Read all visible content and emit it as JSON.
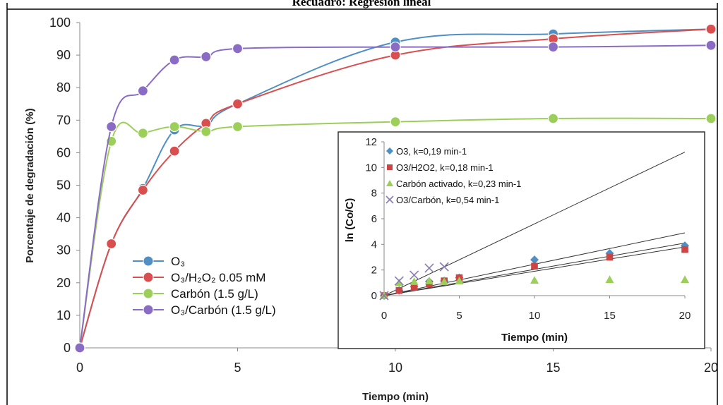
{
  "top_title": "Recuadro: Regresión lineal",
  "chart_data": [
    {
      "type": "line",
      "xlabel": "Tiempo (min)",
      "ylabel": "Porcentaje de degradación (%)",
      "xlim": [
        0,
        20
      ],
      "ylim": [
        0,
        100
      ],
      "xticks": [
        0,
        5,
        10,
        15,
        20
      ],
      "yticks": [
        0,
        10,
        20,
        30,
        40,
        50,
        60,
        70,
        80,
        90,
        100
      ],
      "grid": false,
      "legend_position": "bottom-left",
      "series": [
        {
          "name": "O₃",
          "color": "#4f8fc4",
          "x": [
            0,
            1,
            2,
            3,
            4,
            5,
            10,
            15,
            20
          ],
          "y": [
            0,
            32,
            49,
            67,
            68.5,
            75,
            94,
            96.5,
            98
          ]
        },
        {
          "name": "O₃/H₂O₂ 0.05 mM",
          "color": "#d94f4f",
          "x": [
            0,
            1,
            2,
            3,
            4,
            5,
            10,
            15,
            20
          ],
          "y": [
            0,
            32,
            48.5,
            60.5,
            69,
            75,
            90,
            95,
            98
          ]
        },
        {
          "name": "Carbón (1.5 g/L)",
          "color": "#9bcf5a",
          "x": [
            0,
            1,
            2,
            3,
            4,
            5,
            10,
            15,
            20
          ],
          "y": [
            0,
            63.5,
            66,
            68,
            66.5,
            68,
            69.5,
            70.5,
            70.5
          ]
        },
        {
          "name": "O₃/Carbón (1.5 g/L)",
          "color": "#8a6cc4",
          "x": [
            0,
            1,
            2,
            3,
            4,
            5,
            10,
            15,
            20
          ],
          "y": [
            0,
            68,
            79,
            88.5,
            89.5,
            92,
            92.5,
            92.5,
            93
          ]
        }
      ]
    },
    {
      "type": "scatter",
      "xlabel": "Tiempo (min)",
      "ylabel": "ln (Co/C)",
      "xlim": [
        0,
        20
      ],
      "ylim": [
        0,
        12
      ],
      "xticks": [
        0,
        5,
        10,
        15,
        20
      ],
      "yticks": [
        0,
        2,
        4,
        6,
        8,
        10,
        12
      ],
      "grid": false,
      "legend_position": "top-left",
      "series": [
        {
          "name": "O3, k=0,19 min-1",
          "marker": "diamond",
          "color": "#4f8fc4",
          "x": [
            0,
            1,
            2,
            3,
            4,
            5,
            10,
            15,
            20
          ],
          "y": [
            0,
            0.4,
            0.7,
            1.1,
            1.15,
            1.4,
            2.8,
            3.3,
            3.9
          ]
        },
        {
          "name": "O3/H2O2, k=0,18 min-1",
          "marker": "square",
          "color": "#cc4444",
          "x": [
            0,
            1,
            2,
            3,
            4,
            5,
            10,
            15,
            20
          ],
          "y": [
            0,
            0.4,
            0.65,
            0.9,
            1.15,
            1.4,
            2.3,
            3.0,
            3.6
          ]
        },
        {
          "name": "Carbón activado, k=0,23 min-1",
          "marker": "triangle",
          "color": "#9bcf5a",
          "x": [
            0,
            1,
            2,
            3,
            4,
            5,
            10,
            15,
            20
          ],
          "y": [
            0,
            1.0,
            1.1,
            1.15,
            1.1,
            1.15,
            1.2,
            1.25,
            1.25
          ]
        },
        {
          "name": "O3/Carbón, k=0,54 min-1",
          "marker": "x",
          "color": "#8a7cb0",
          "x": [
            0,
            1,
            2,
            3,
            4
          ],
          "y": [
            0,
            1.15,
            1.6,
            2.15,
            2.25
          ]
        }
      ],
      "trendlines": [
        {
          "slope": 0.56,
          "color": "#333333"
        },
        {
          "slope": 0.245,
          "color": "#333333"
        },
        {
          "slope": 0.205,
          "color": "#333333"
        },
        {
          "slope": 0.19,
          "color": "#333333"
        }
      ]
    }
  ]
}
